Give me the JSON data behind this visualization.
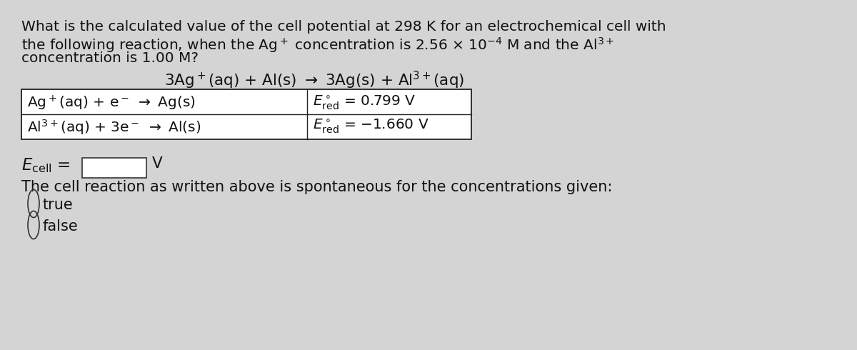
{
  "bg_color": "#d4d4d4",
  "text_color": "#111111",
  "font_size_main": 14.5,
  "font_size_reaction": 15.5,
  "font_size_table": 14.5,
  "font_size_ecell": 15.5,
  "font_size_spontaneous": 15,
  "line1": "What is the calculated value of the cell potential at 298 K for an electrochemical cell with",
  "line2_pre": "the following reaction, when the Ag",
  "line2_mid": "+ concentration is 2.56 × 10",
  "line2_exp": "−4",
  "line2_post": " M and the Al",
  "line2_sup": "3+",
  "line3": "concentration is 1.00 M?",
  "spontaneous_text": "The cell reaction as written above is spontaneous for the concentrations given:",
  "true_label": "true",
  "false_label": "false"
}
